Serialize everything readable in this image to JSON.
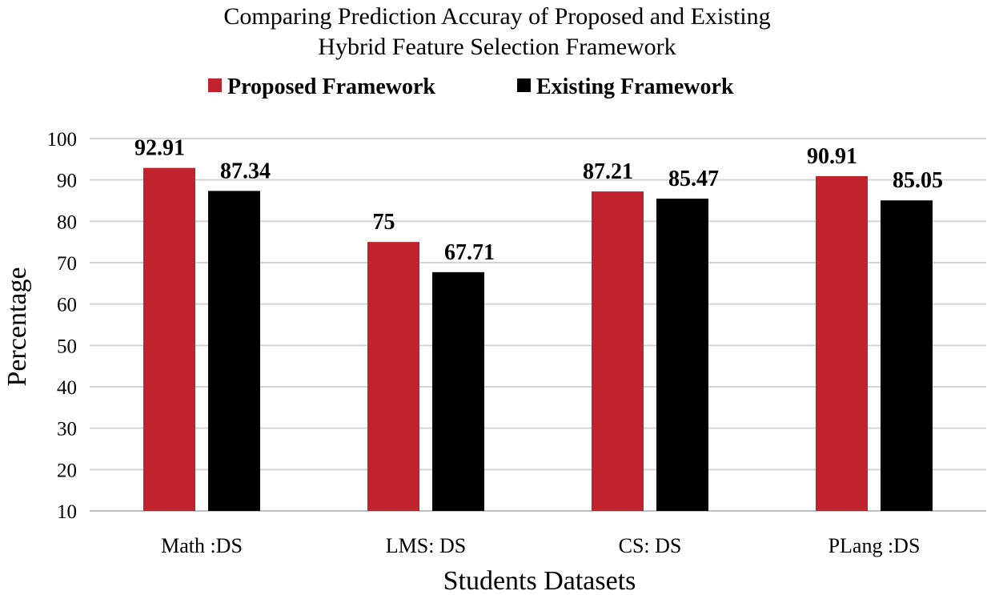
{
  "chart_data": {
    "type": "bar",
    "title": [
      "Comparing Prediction Accuray of Proposed and Existing",
      "Hybrid Feature Selection Framework"
    ],
    "xlabel": "Students Datasets",
    "ylabel": "Percentage",
    "categories": [
      "Math :DS",
      "LMS: DS",
      "CS: DS",
      "PLang :DS"
    ],
    "series": [
      {
        "name": "Proposed Framework",
        "color": "#c0232b",
        "values": [
          92.91,
          75,
          87.21,
          90.91
        ]
      },
      {
        "name": "Existing Framework",
        "color": "#000000",
        "values": [
          87.34,
          67.71,
          85.47,
          85.05
        ]
      }
    ],
    "ylim": [
      10,
      100
    ],
    "yticks": [
      10,
      20,
      30,
      40,
      50,
      60,
      70,
      80,
      90,
      100
    ],
    "grid": true,
    "legend": "top-center"
  }
}
